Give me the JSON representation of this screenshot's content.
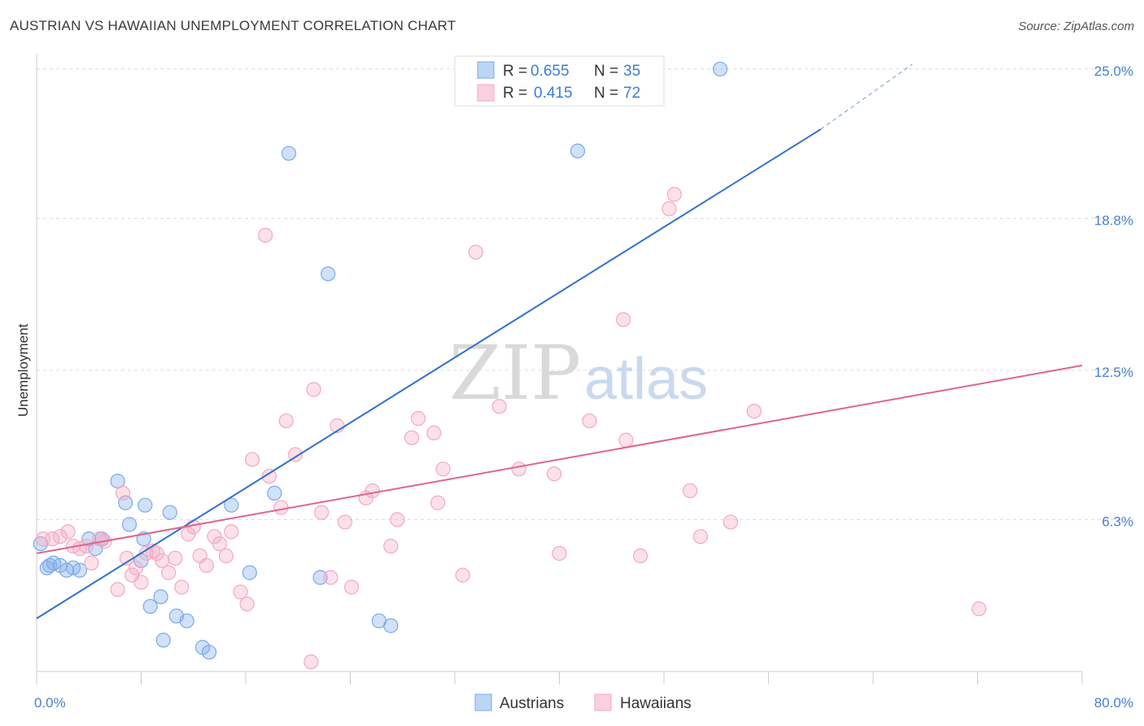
{
  "title": "AUSTRIAN VS HAWAIIAN UNEMPLOYMENT CORRELATION CHART",
  "source": "Source: ZipAtlas.com",
  "watermark": {
    "zip": "ZIP",
    "atlas": "atlas"
  },
  "chart_data": {
    "type": "scatter",
    "title": "AUSTRIAN VS HAWAIIAN UNEMPLOYMENT CORRELATION CHART",
    "xlabel": "",
    "ylabel": "Unemployment",
    "xlim": [
      0,
      80
    ],
    "ylim": [
      0,
      25.5
    ],
    "x_tick_labels": [
      "0.0%",
      "80.0%"
    ],
    "y_ticks": [
      6.3,
      12.5,
      18.8,
      25.0
    ],
    "y_tick_labels": [
      "6.3%",
      "12.5%",
      "18.8%",
      "25.0%"
    ],
    "grid": true,
    "legend_position": "top-center",
    "series": [
      {
        "name": "Austrians",
        "color": "#7aaae8",
        "line_color": "#2f72cc",
        "stats": {
          "r_label": "R =",
          "r": "0.655",
          "n_label": "N =",
          "n": "35"
        },
        "trend": {
          "x": [
            0,
            60
          ],
          "y": [
            2.2,
            22.5
          ],
          "dashed_to": [
            67,
            25.2
          ]
        },
        "points": [
          [
            0.3,
            5.3
          ],
          [
            0.8,
            4.3
          ],
          [
            1.3,
            4.5
          ],
          [
            1.8,
            4.4
          ],
          [
            2.3,
            4.2
          ],
          [
            2.8,
            4.3
          ],
          [
            3.3,
            4.2
          ],
          [
            4.0,
            5.5
          ],
          [
            4.5,
            5.1
          ],
          [
            5.0,
            5.5
          ],
          [
            6.2,
            7.9
          ],
          [
            6.8,
            7.0
          ],
          [
            7.1,
            6.1
          ],
          [
            8.0,
            4.6
          ],
          [
            8.2,
            5.5
          ],
          [
            8.3,
            6.9
          ],
          [
            8.7,
            2.7
          ],
          [
            9.5,
            3.1
          ],
          [
            9.7,
            1.3
          ],
          [
            10.2,
            6.6
          ],
          [
            10.7,
            2.3
          ],
          [
            11.5,
            2.1
          ],
          [
            12.7,
            1.0
          ],
          [
            13.2,
            0.8
          ],
          [
            14.9,
            6.9
          ],
          [
            16.3,
            4.1
          ],
          [
            18.2,
            7.4
          ],
          [
            19.3,
            21.5
          ],
          [
            21.7,
            3.9
          ],
          [
            22.3,
            16.5
          ],
          [
            26.2,
            2.1
          ],
          [
            27.1,
            1.9
          ],
          [
            41.4,
            21.6
          ],
          [
            52.3,
            25.0
          ],
          [
            1.0,
            4.4
          ]
        ]
      },
      {
        "name": "Hawaiians",
        "color": "#f4a8c0",
        "line_color": "#e0648f",
        "stats": {
          "r_label": "R =",
          "r": "0.415",
          "n_label": "N =",
          "n": "72"
        },
        "trend": {
          "x": [
            0,
            80
          ],
          "y": [
            4.9,
            12.7
          ]
        },
        "points": [
          [
            0.5,
            5.5
          ],
          [
            1.2,
            5.5
          ],
          [
            1.8,
            5.6
          ],
          [
            2.4,
            5.8
          ],
          [
            2.8,
            5.2
          ],
          [
            3.3,
            5.1
          ],
          [
            3.8,
            5.2
          ],
          [
            4.2,
            4.5
          ],
          [
            4.8,
            5.5
          ],
          [
            5.2,
            5.4
          ],
          [
            6.2,
            3.4
          ],
          [
            6.6,
            7.4
          ],
          [
            6.9,
            4.7
          ],
          [
            7.3,
            4.0
          ],
          [
            7.6,
            4.3
          ],
          [
            8.0,
            3.7
          ],
          [
            8.4,
            4.9
          ],
          [
            8.9,
            5.0
          ],
          [
            9.2,
            4.9
          ],
          [
            9.6,
            4.6
          ],
          [
            10.1,
            4.1
          ],
          [
            10.6,
            4.7
          ],
          [
            11.1,
            3.5
          ],
          [
            11.6,
            5.7
          ],
          [
            12.0,
            6.0
          ],
          [
            12.5,
            4.8
          ],
          [
            13.0,
            4.4
          ],
          [
            13.6,
            5.6
          ],
          [
            14.0,
            5.3
          ],
          [
            14.5,
            4.8
          ],
          [
            14.9,
            5.8
          ],
          [
            15.6,
            3.3
          ],
          [
            16.1,
            2.8
          ],
          [
            16.5,
            8.8
          ],
          [
            17.5,
            18.1
          ],
          [
            17.8,
            8.1
          ],
          [
            18.7,
            6.8
          ],
          [
            19.1,
            10.4
          ],
          [
            19.8,
            9.0
          ],
          [
            21.2,
            11.7
          ],
          [
            21.8,
            6.6
          ],
          [
            22.5,
            3.9
          ],
          [
            23.0,
            10.2
          ],
          [
            23.6,
            6.2
          ],
          [
            24.1,
            3.5
          ],
          [
            25.2,
            7.2
          ],
          [
            25.7,
            7.5
          ],
          [
            27.1,
            5.2
          ],
          [
            27.6,
            6.3
          ],
          [
            28.7,
            9.7
          ],
          [
            29.2,
            10.5
          ],
          [
            30.4,
            9.9
          ],
          [
            30.7,
            7.0
          ],
          [
            31.1,
            8.4
          ],
          [
            32.6,
            4.0
          ],
          [
            33.6,
            17.4
          ],
          [
            35.4,
            11.0
          ],
          [
            36.9,
            8.4
          ],
          [
            39.6,
            8.2
          ],
          [
            40.0,
            4.9
          ],
          [
            42.3,
            10.4
          ],
          [
            44.9,
            14.6
          ],
          [
            45.1,
            9.6
          ],
          [
            46.2,
            4.8
          ],
          [
            48.4,
            19.2
          ],
          [
            48.8,
            19.8
          ],
          [
            50.0,
            7.5
          ],
          [
            50.8,
            5.6
          ],
          [
            53.1,
            6.2
          ],
          [
            54.9,
            10.8
          ],
          [
            72.1,
            2.6
          ],
          [
            21.0,
            0.4
          ]
        ]
      }
    ]
  },
  "legend": {
    "items": [
      "Austrians",
      "Hawaiians"
    ]
  }
}
